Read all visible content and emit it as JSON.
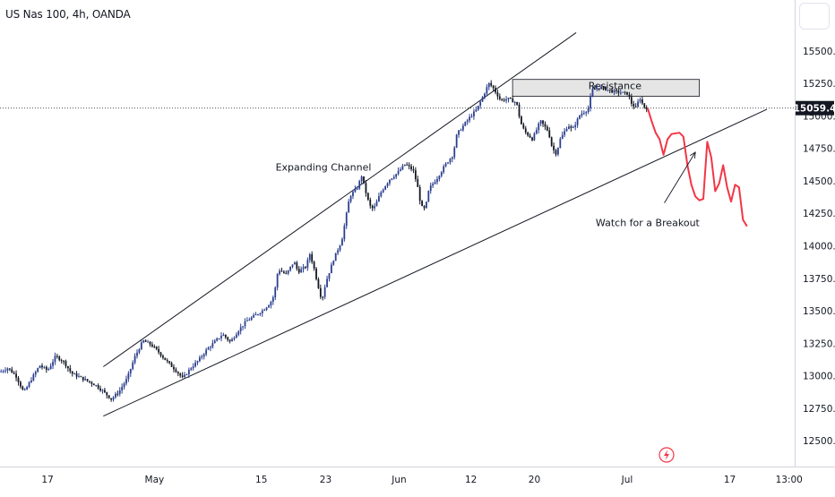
{
  "header": {
    "title": "US Nas 100, 4h, OANDA"
  },
  "colors": {
    "bull": "#2b3f8f",
    "bear": "#131722",
    "projection": "#f23645",
    "price_tag": "#131722",
    "line": "#131722",
    "flash": "#f23645"
  },
  "icons": {
    "settings": "settings-icon",
    "flash": "lightning-icon"
  },
  "chart_data": {
    "type": "candlestick",
    "price_scale": {
      "ticks": [
        "15500.0",
        "15250.0",
        "15000.0",
        "14750.0",
        "14500.0",
        "14250.0",
        "14000.0",
        "13750.0",
        "13500.0",
        "13250.0",
        "13000.0",
        "12750.0",
        "12500.0"
      ],
      "tick_values": [
        15500,
        15250,
        15000,
        14750,
        14500,
        14250,
        14000,
        13750,
        13500,
        13250,
        13000,
        12750,
        12500
      ],
      "ylim": [
        12350,
        15700
      ]
    },
    "time_axis": {
      "labels": [
        "17",
        "May",
        "15",
        "23",
        "Jun",
        "12",
        "20",
        "Jul",
        "17",
        "13:00"
      ],
      "label_positions": [
        0.057,
        0.185,
        0.313,
        0.39,
        0.478,
        0.564,
        0.64,
        0.751,
        0.874,
        0.945
      ]
    },
    "last_price": {
      "label": "15059.4",
      "value": 15059.4
    },
    "price_points": [
      [
        0.0,
        13030
      ],
      [
        0.01,
        13060
      ],
      [
        0.02,
        13000
      ],
      [
        0.03,
        12870
      ],
      [
        0.04,
        12980
      ],
      [
        0.05,
        13080
      ],
      [
        0.06,
        13040
      ],
      [
        0.07,
        13150
      ],
      [
        0.08,
        13110
      ],
      [
        0.09,
        13020
      ],
      [
        0.1,
        12990
      ],
      [
        0.11,
        12960
      ],
      [
        0.12,
        12930
      ],
      [
        0.13,
        12880
      ],
      [
        0.14,
        12820
      ],
      [
        0.15,
        12880
      ],
      [
        0.16,
        12980
      ],
      [
        0.17,
        13150
      ],
      [
        0.18,
        13270
      ],
      [
        0.19,
        13240
      ],
      [
        0.2,
        13180
      ],
      [
        0.21,
        13110
      ],
      [
        0.22,
        13050
      ],
      [
        0.23,
        12980
      ],
      [
        0.24,
        13060
      ],
      [
        0.25,
        13120
      ],
      [
        0.26,
        13200
      ],
      [
        0.27,
        13260
      ],
      [
        0.28,
        13320
      ],
      [
        0.29,
        13260
      ],
      [
        0.3,
        13350
      ],
      [
        0.31,
        13420
      ],
      [
        0.32,
        13460
      ],
      [
        0.33,
        13500
      ],
      [
        0.34,
        13560
      ],
      [
        0.345,
        13620
      ],
      [
        0.35,
        13820
      ],
      [
        0.36,
        13780
      ],
      [
        0.37,
        13880
      ],
      [
        0.375,
        13800
      ],
      [
        0.385,
        13840
      ],
      [
        0.39,
        13940
      ],
      [
        0.395,
        13830
      ],
      [
        0.4,
        13700
      ],
      [
        0.405,
        13580
      ],
      [
        0.41,
        13720
      ],
      [
        0.42,
        13900
      ],
      [
        0.43,
        14040
      ],
      [
        0.44,
        14380
      ],
      [
        0.45,
        14450
      ],
      [
        0.455,
        14540
      ],
      [
        0.46,
        14420
      ],
      [
        0.465,
        14310
      ],
      [
        0.47,
        14280
      ],
      [
        0.48,
        14420
      ],
      [
        0.49,
        14510
      ],
      [
        0.5,
        14560
      ],
      [
        0.51,
        14630
      ],
      [
        0.52,
        14580
      ],
      [
        0.525,
        14470
      ],
      [
        0.53,
        14300
      ],
      [
        0.535,
        14280
      ],
      [
        0.54,
        14440
      ],
      [
        0.55,
        14520
      ],
      [
        0.56,
        14620
      ],
      [
        0.57,
        14700
      ],
      [
        0.575,
        14860
      ],
      [
        0.58,
        14900
      ],
      [
        0.59,
        14980
      ],
      [
        0.6,
        15050
      ],
      [
        0.61,
        15180
      ],
      [
        0.615,
        15250
      ],
      [
        0.62,
        15220
      ],
      [
        0.63,
        15120
      ],
      [
        0.64,
        15130
      ],
      [
        0.65,
        15100
      ],
      [
        0.655,
        14950
      ],
      [
        0.66,
        14880
      ],
      [
        0.67,
        14820
      ],
      [
        0.68,
        14960
      ],
      [
        0.69,
        14880
      ],
      [
        0.695,
        14750
      ],
      [
        0.7,
        14710
      ],
      [
        0.705,
        14820
      ],
      [
        0.715,
        14930
      ],
      [
        0.72,
        14890
      ],
      [
        0.73,
        15010
      ],
      [
        0.74,
        15050
      ],
      [
        0.745,
        15200
      ],
      [
        0.755,
        15220
      ],
      [
        0.765,
        15200
      ],
      [
        0.77,
        15190
      ],
      [
        0.78,
        15180
      ],
      [
        0.79,
        15170
      ],
      [
        0.795,
        15090
      ],
      [
        0.8,
        15060
      ],
      [
        0.805,
        15140
      ],
      [
        0.81,
        15070
      ],
      [
        0.815,
        15059
      ]
    ],
    "projection_points": [
      [
        0.815,
        15059
      ],
      [
        0.82,
        14960
      ],
      [
        0.825,
        14870
      ],
      [
        0.83,
        14820
      ],
      [
        0.835,
        14700
      ],
      [
        0.84,
        14820
      ],
      [
        0.845,
        14860
      ],
      [
        0.855,
        14870
      ],
      [
        0.86,
        14840
      ],
      [
        0.865,
        14620
      ],
      [
        0.87,
        14470
      ],
      [
        0.875,
        14380
      ],
      [
        0.88,
        14350
      ],
      [
        0.885,
        14360
      ],
      [
        0.89,
        14800
      ],
      [
        0.895,
        14680
      ],
      [
        0.9,
        14420
      ],
      [
        0.905,
        14480
      ],
      [
        0.91,
        14620
      ],
      [
        0.915,
        14450
      ],
      [
        0.92,
        14340
      ],
      [
        0.925,
        14470
      ],
      [
        0.93,
        14450
      ],
      [
        0.935,
        14200
      ],
      [
        0.94,
        14150
      ]
    ],
    "channel": {
      "upper": [
        [
          0.13,
          13070
        ],
        [
          0.725,
          15640
        ]
      ],
      "lower": [
        [
          0.13,
          12690
        ],
        [
          0.965,
          15050
        ]
      ]
    },
    "resistance": {
      "x0": 0.645,
      "x1": 0.88,
      "y0": 15150,
      "y1": 15280
    },
    "annotations": {
      "resistance": "Resistance",
      "channel": "Expanding Channel",
      "breakout": "Watch for a Breakout"
    },
    "annotation_anchors": {
      "channel": [
        0.407,
        14580
      ],
      "breakout": [
        0.815,
        14150
      ],
      "breakout_arrow": [
        [
          0.836,
          14330
        ],
        [
          0.875,
          14720
        ]
      ]
    }
  }
}
